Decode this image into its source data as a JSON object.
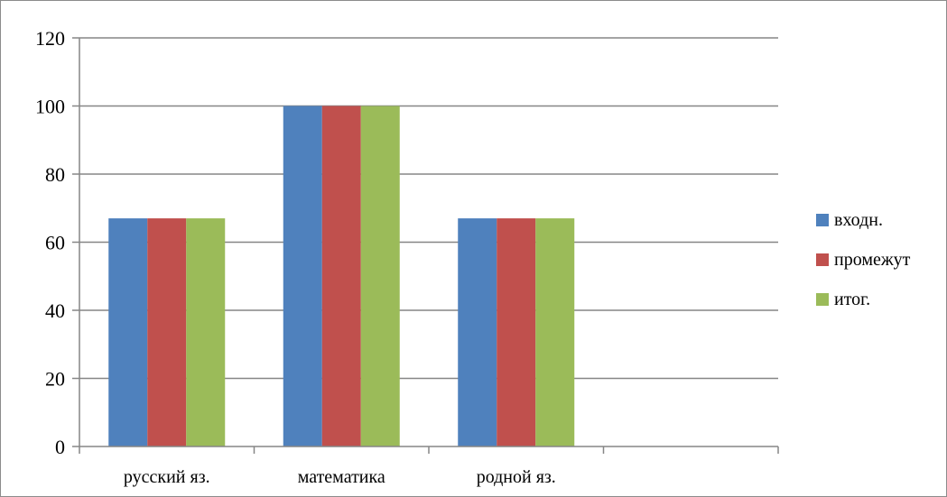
{
  "chart_data": {
    "type": "bar",
    "categories": [
      "русский яз.",
      "математика",
      "родной яз.",
      ""
    ],
    "series": [
      {
        "name": "входн.",
        "values": [
          67,
          100,
          67,
          null
        ],
        "color": "#4f81bd"
      },
      {
        "name": "промежут",
        "values": [
          67,
          100,
          67,
          null
        ],
        "color": "#c0504d"
      },
      {
        "name": "итог.",
        "values": [
          67,
          100,
          67,
          null
        ],
        "color": "#9bbb59"
      }
    ],
    "title": "",
    "xlabel": "",
    "ylabel": "",
    "ylim": [
      0,
      120
    ],
    "yticks": [
      "0",
      "20",
      "40",
      "60",
      "80",
      "100",
      "120"
    ],
    "grid": true,
    "legend_position": "right"
  }
}
